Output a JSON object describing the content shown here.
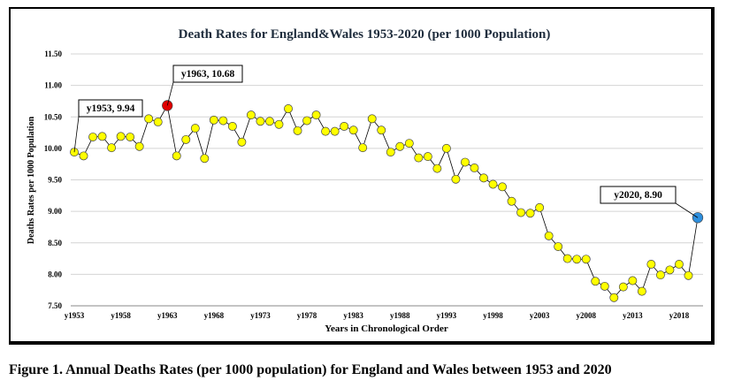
{
  "caption": "Figure 1. Annual Deaths Rates (per 1000 population) for England and Wales between 1953 and 2020",
  "chart_data": {
    "type": "line",
    "title": "Death Rates for England&Wales  1953-2020 (per 1000 Population)",
    "xlabel": "Years in Chronological Order",
    "ylabel": "Deaths Rates per 1000 Population",
    "ylim": [
      7.5,
      11.5
    ],
    "yticks": [
      "7.50",
      "8.00",
      "8.50",
      "9.00",
      "9.50",
      "10.00",
      "10.50",
      "11.00",
      "11.50"
    ],
    "xticks": [
      "y1953",
      "y1958",
      "y1963",
      "y1968",
      "y1973",
      "y1978",
      "y1983",
      "y1988",
      "y1993",
      "y1998",
      "y2003",
      "y2008",
      "y2013",
      "y2018"
    ],
    "grid": "horizontal",
    "x_start": 1953,
    "series": [
      {
        "values": [
          9.94,
          9.88,
          10.18,
          10.19,
          10.01,
          10.19,
          10.18,
          10.03,
          10.47,
          10.42,
          10.68,
          9.88,
          10.14,
          10.32,
          9.84,
          10.45,
          10.44,
          10.35,
          10.1,
          10.53,
          10.43,
          10.43,
          10.38,
          10.63,
          10.28,
          10.44,
          10.53,
          10.27,
          10.27,
          10.35,
          10.29,
          10.01,
          10.47,
          10.29,
          9.94,
          10.03,
          10.08,
          9.85,
          9.87,
          9.68,
          10.0,
          9.51,
          9.78,
          9.69,
          9.53,
          9.43,
          9.39,
          9.16,
          8.98,
          8.97,
          9.06,
          8.61,
          8.44,
          8.25,
          8.24,
          8.24,
          7.89,
          7.81,
          7.63,
          7.8,
          7.9,
          7.73,
          8.16,
          7.99,
          8.07,
          8.16,
          7.98,
          8.9
        ],
        "point_color": "#ffff00",
        "line_color": "#000000"
      }
    ],
    "highlights": [
      {
        "label": "y1953, 9.94",
        "year": 1953,
        "value": 9.94
      },
      {
        "label": "y1963, 10.68",
        "year": 1963,
        "value": 10.68,
        "color": "#e00000"
      },
      {
        "label": "y2020, 8.90",
        "year": 2020,
        "value": 8.9,
        "color": "#2e8fde"
      }
    ]
  }
}
